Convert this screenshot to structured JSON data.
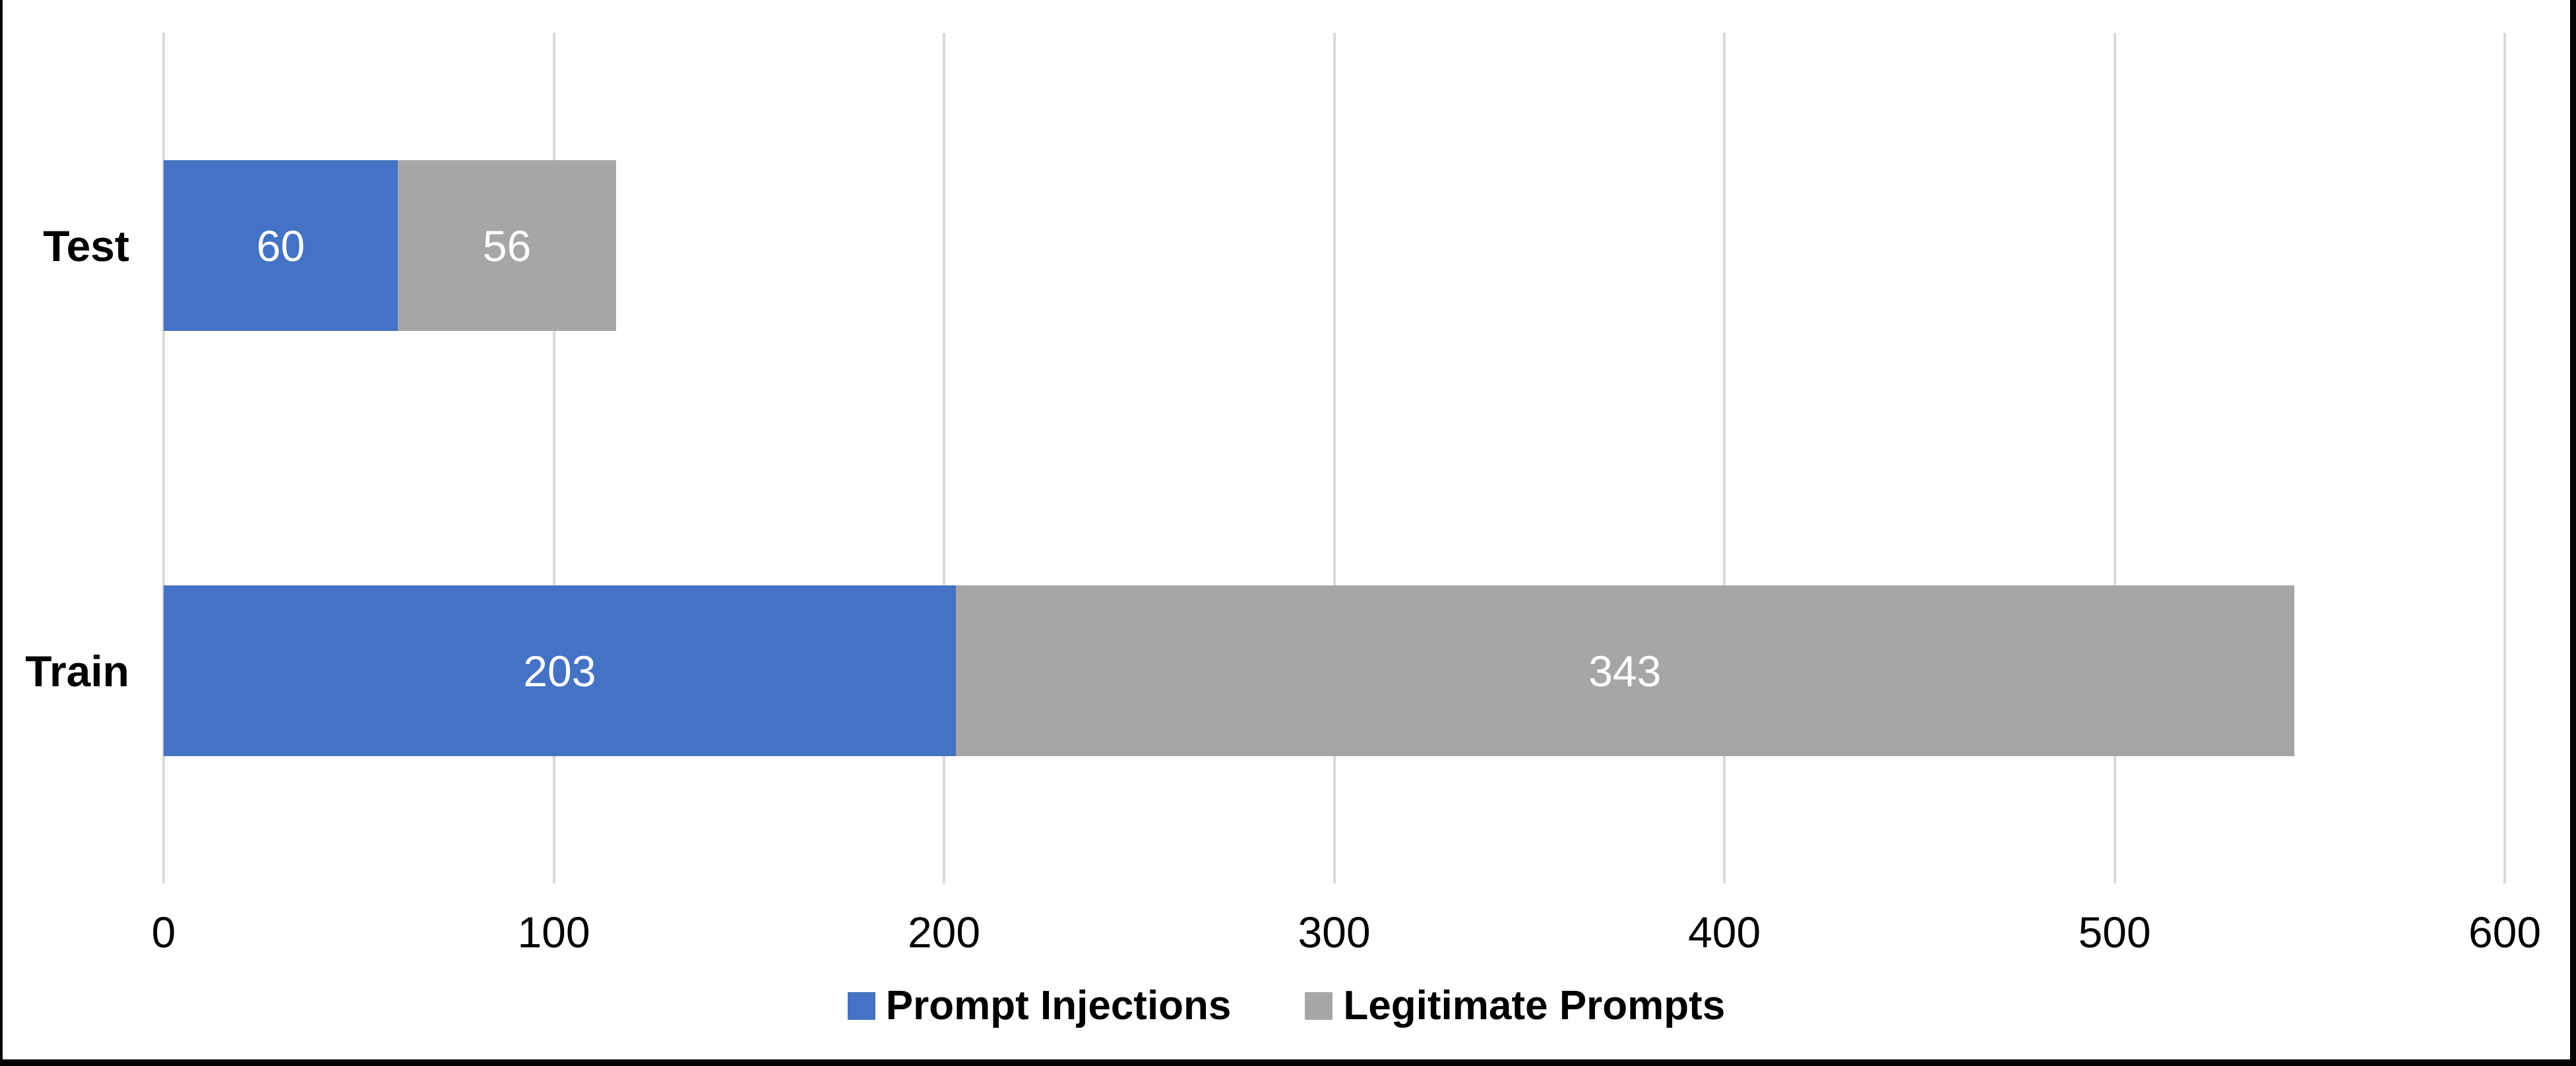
{
  "chart_data": {
    "type": "bar",
    "orientation": "horizontal",
    "stacked": true,
    "categories": [
      "Test",
      "Train"
    ],
    "series": [
      {
        "name": "Prompt Injections",
        "color": "#4472C4",
        "values": [
          60,
          203
        ]
      },
      {
        "name": "Legitimate Prompts",
        "color": "#A6A6A6",
        "values": [
          56,
          343
        ]
      }
    ],
    "xlim": [
      0,
      600
    ],
    "xticks": [
      0,
      100,
      200,
      300,
      400,
      500,
      600
    ],
    "grid": "vertical",
    "gridline_color": "#D9D9D9",
    "data_label_color": "#FFFFFF",
    "legend_position": "bottom",
    "frame_border_color": "#000000"
  }
}
